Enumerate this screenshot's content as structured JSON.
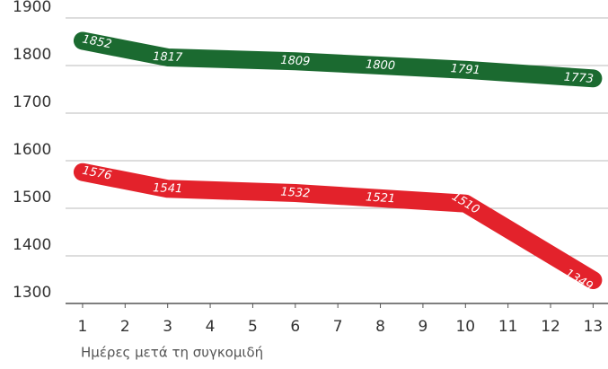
{
  "chart_data": {
    "type": "line",
    "xlabel": "Ημέρες μετά τη συγκομιδή",
    "x": [
      1,
      3,
      6,
      8,
      10,
      13
    ],
    "series": [
      {
        "name": null,
        "color": "#1b6a30",
        "values": [
          1852,
          1817,
          1809,
          1800,
          1791,
          1773
        ]
      },
      {
        "name": null,
        "color": "#e3222b",
        "values": [
          1576,
          1541,
          1532,
          1521,
          1510,
          1349
        ]
      }
    ],
    "xlim": [
      0.6,
      13.35
    ],
    "xticks": [
      1,
      2,
      3,
      4,
      5,
      6,
      7,
      8,
      9,
      10,
      11,
      12,
      13
    ],
    "ylim": [
      1300,
      1900
    ],
    "yticks": [
      1300,
      1400,
      1500,
      1600,
      1700,
      1800,
      1900
    ],
    "grid": true
  }
}
